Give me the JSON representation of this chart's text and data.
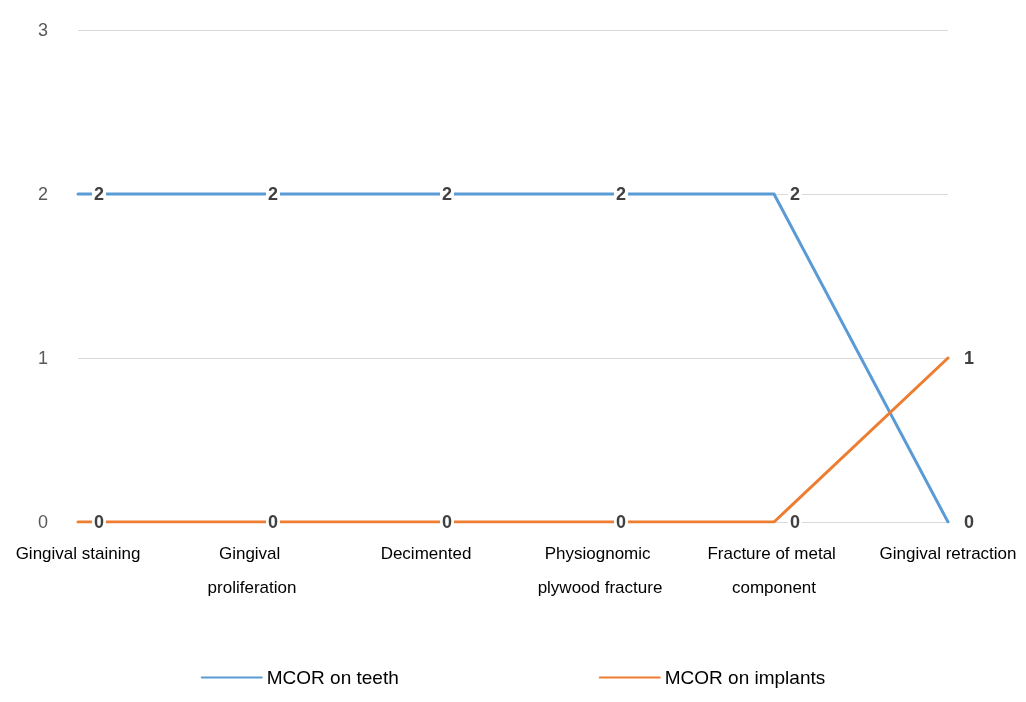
{
  "chart_data": {
    "type": "line",
    "categories": [
      "Gingival staining",
      "Gingival proliferation",
      "Decimented",
      "Physiognomic plywood fracture",
      "Fracture of metal component",
      "Gingival retraction"
    ],
    "series": [
      {
        "name": "MCOR on teeth",
        "color": "#5b9bd5",
        "values": [
          2,
          2,
          2,
          2,
          2,
          0
        ]
      },
      {
        "name": "MCOR on implants",
        "color": "#ed7d31",
        "values": [
          0,
          0,
          0,
          0,
          0,
          1
        ]
      }
    ],
    "ylim": [
      0,
      3
    ],
    "yticks": [
      0,
      1,
      2,
      3
    ],
    "grid": "y",
    "legend": "bottom",
    "data_labels": true,
    "marker": "none",
    "line_style": "solid"
  }
}
